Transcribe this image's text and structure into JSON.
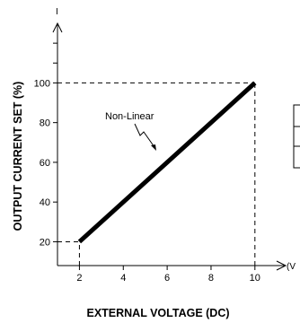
{
  "chart_data": {
    "type": "line",
    "x": [
      2,
      10
    ],
    "y": [
      20,
      100
    ],
    "xlabel": "EXTERNAL VOLTAGE (DC)",
    "ylabel": "OUTPUT CURRENT SET (%)",
    "x_axis_symbol": "(V",
    "y_axis_symbol": "I",
    "xticks": [
      "2",
      "4",
      "6",
      "8",
      "10"
    ],
    "yticks": [
      "20",
      "40",
      "60",
      "80",
      "100"
    ],
    "xlim": [
      1,
      11.4
    ],
    "ylim": [
      8,
      130
    ],
    "annotation": "Non-Linear",
    "reference_lines": [
      {
        "axis": "x",
        "value": 2,
        "to_y": 20
      },
      {
        "axis": "x",
        "value": 10,
        "to_y": 100
      },
      {
        "axis": "y",
        "value": 20,
        "to_x": 2
      },
      {
        "axis": "y",
        "value": 100,
        "to_x": 10
      }
    ],
    "grid": false,
    "line_color": "#000000"
  }
}
